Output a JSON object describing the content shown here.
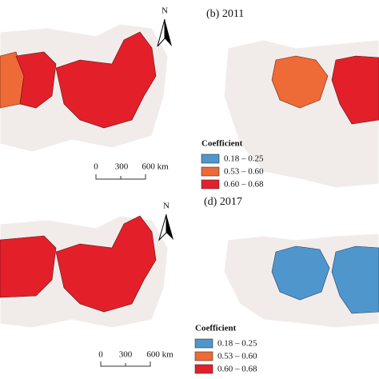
{
  "panels": [
    {
      "label": "(b) 2011",
      "north": "N",
      "scale": [
        "0",
        "300",
        "600 km"
      ],
      "legend": {
        "title": "Coefficient",
        "items": [
          "0.18 – 0.25",
          "0.53 – 0.60",
          "0.60 – 0.68"
        ]
      }
    },
    {
      "label": "(d) 2017",
      "north": "N",
      "scale": [
        "0",
        "300",
        "600 km"
      ],
      "legend": {
        "title": "Coefficient",
        "items": [
          "0.18 – 0.25",
          "0.53 – 0.60",
          "0.60 – 0.68"
        ]
      }
    }
  ]
}
